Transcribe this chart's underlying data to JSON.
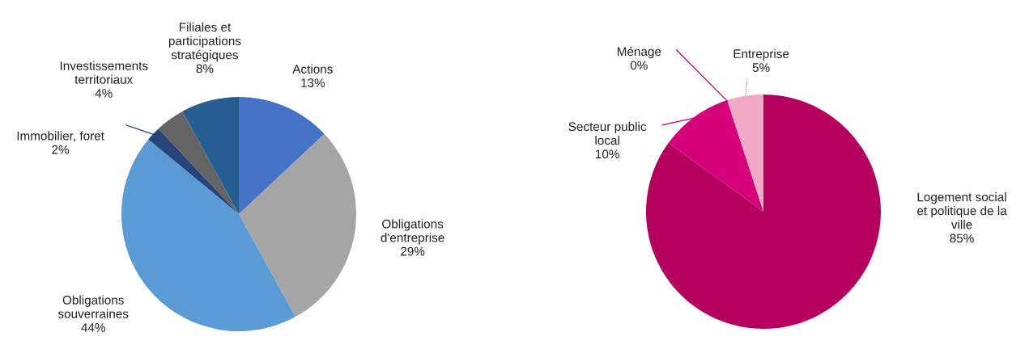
{
  "chart_data": [
    {
      "type": "pie",
      "categories": [
        "Actions",
        "Obligations\nd'entreprise",
        "Obligations\nsouverraines",
        "Immobilier, foret",
        "Investissements\nterritoriaux",
        "Filiales et\nparticipations\nstratégiques"
      ],
      "values": [
        13,
        29,
        44,
        2,
        4,
        8
      ],
      "value_labels": [
        "13%",
        "29%",
        "44%",
        "2%",
        "4%",
        "8%"
      ],
      "colors": [
        "#4472c4",
        "#a5a5a5",
        "#5b9bd5",
        "#264478",
        "#636363",
        "#255e91"
      ]
    },
    {
      "type": "pie",
      "categories": [
        "Logement social\net politique de la\nville",
        "Secteur public\nlocal",
        "Ménage",
        "Entreprise"
      ],
      "values": [
        85,
        10,
        0,
        5
      ],
      "value_labels": [
        "85%",
        "10%",
        "0%",
        "5%"
      ],
      "colors": [
        "#b5005f",
        "#d6007a",
        "#c0006a",
        "#f0a8c4"
      ]
    }
  ]
}
